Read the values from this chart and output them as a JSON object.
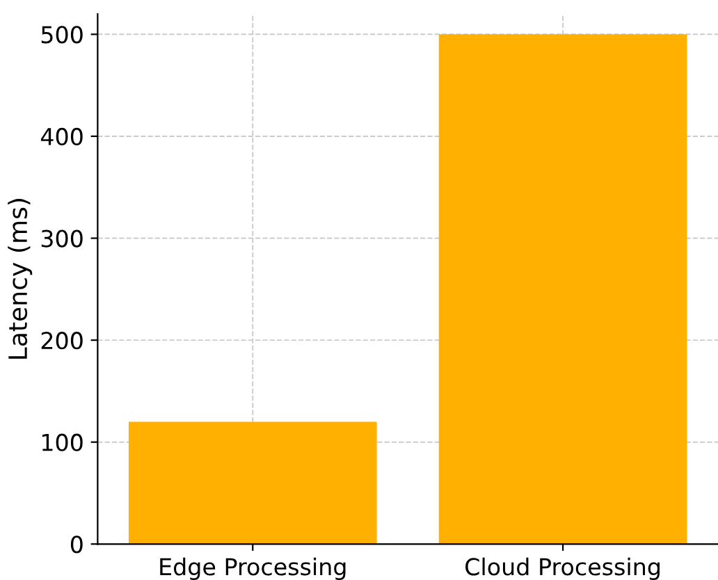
{
  "chart_data": {
    "type": "bar",
    "ylabel": "Latency (ms)",
    "categories": [
      "Edge Processing",
      "Cloud Processing"
    ],
    "values": [
      120,
      500
    ],
    "color": "#ffb000",
    "ylim": [
      0,
      520
    ],
    "yticks": [
      0,
      100,
      200,
      300,
      400,
      500
    ],
    "grid": true
  }
}
